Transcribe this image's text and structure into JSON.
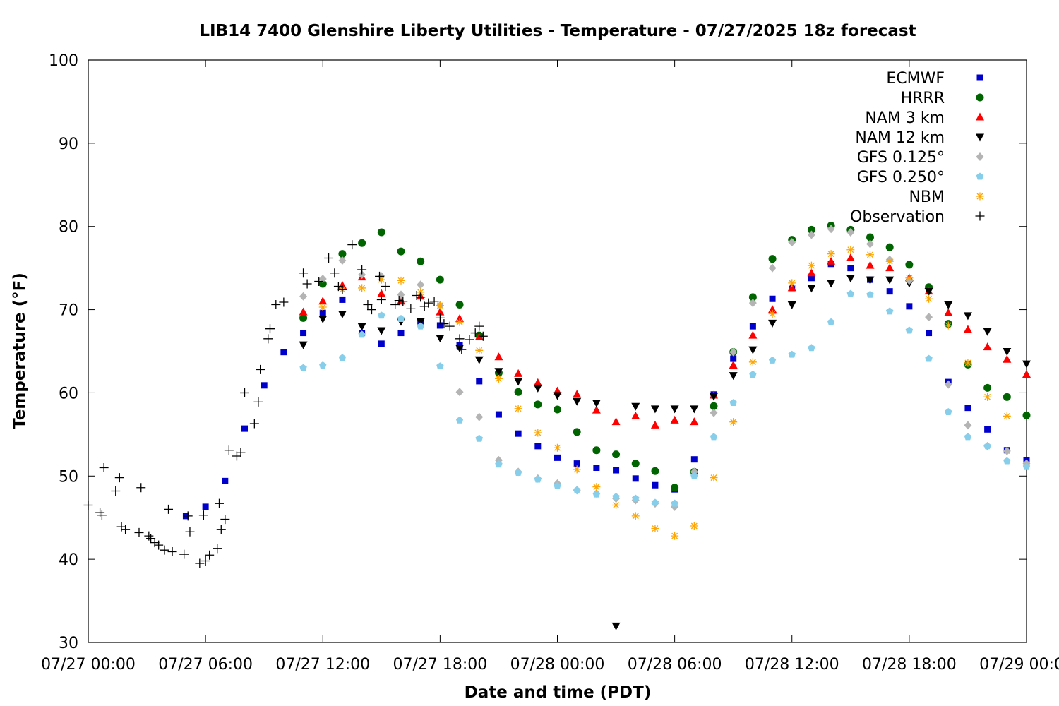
{
  "chart_data": {
    "type": "scatter",
    "title": "LIB14 7400 Glenshire Liberty Utilities - Temperature - 07/27/2025 18z forecast",
    "xlabel": "Date and time (PDT)",
    "ylabel": "Temperature (°F)",
    "xlim": [
      0,
      48
    ],
    "ylim": [
      30,
      100
    ],
    "x_ticks": [
      {
        "value": 0,
        "label": "07/27 00:00"
      },
      {
        "value": 6,
        "label": "07/27 06:00"
      },
      {
        "value": 12,
        "label": "07/27 12:00"
      },
      {
        "value": 18,
        "label": "07/27 18:00"
      },
      {
        "value": 24,
        "label": "07/28 00:00"
      },
      {
        "value": 30,
        "label": "07/28 06:00"
      },
      {
        "value": 36,
        "label": "07/28 12:00"
      },
      {
        "value": 42,
        "label": "07/28 18:00"
      },
      {
        "value": 48,
        "label": "07/29 00:00"
      }
    ],
    "y_ticks": [
      30,
      40,
      50,
      60,
      70,
      80,
      90,
      100
    ],
    "x_unit_note": "hours",
    "grid": false,
    "legend_position": "top-right",
    "series": [
      {
        "name": "ECMWF",
        "marker": "square",
        "color": "#0000cc",
        "x": [
          5,
          6,
          7,
          8,
          9,
          10,
          11,
          12,
          13,
          14,
          15,
          16,
          17,
          18,
          19,
          20,
          21,
          22,
          23,
          24,
          25,
          26,
          27,
          28,
          29,
          30,
          31,
          32,
          33,
          34,
          35,
          36,
          37,
          38,
          39,
          40,
          41,
          42,
          43,
          44,
          45,
          46,
          47,
          48
        ],
        "y": [
          45.2,
          46.3,
          49.4,
          55.7,
          60.9,
          64.9,
          67.2,
          69.6,
          71.2,
          67.2,
          65.9,
          67.2,
          68.6,
          68.1,
          65.7,
          61.4,
          57.4,
          55.1,
          53.6,
          52.2,
          51.5,
          51.0,
          50.7,
          49.7,
          48.9,
          48.4,
          52.0,
          59.8,
          64.1,
          68.0,
          71.3,
          72.6,
          73.8,
          75.5,
          75.0,
          73.6,
          72.2,
          70.4,
          67.2,
          61.3,
          58.2,
          55.6,
          53.1,
          51.9
        ]
      },
      {
        "name": "HRRR",
        "marker": "circle",
        "color": "#006400",
        "x": [
          11,
          12,
          13,
          14,
          15,
          16,
          17,
          18,
          19,
          20,
          21,
          22,
          23,
          24,
          25,
          26,
          27,
          28,
          29,
          30,
          31,
          32,
          33,
          34,
          35,
          36,
          37,
          38,
          39,
          40,
          41,
          42,
          43,
          44,
          45,
          46,
          47,
          48
        ],
        "y": [
          69.0,
          73.1,
          76.7,
          78.0,
          79.3,
          77.0,
          75.8,
          73.6,
          70.6,
          66.9,
          62.4,
          60.1,
          58.6,
          58.0,
          55.3,
          53.1,
          52.6,
          51.5,
          50.6,
          48.6,
          50.5,
          58.4,
          64.9,
          71.5,
          76.1,
          78.4,
          79.6,
          80.1,
          79.6,
          78.7,
          77.5,
          75.4,
          72.7,
          68.3,
          63.4,
          60.6,
          59.5,
          57.3
        ]
      },
      {
        "name": "NAM 3 km",
        "marker": "triangle-up",
        "color": "#ff0000",
        "x": [
          11,
          12,
          13,
          14,
          15,
          16,
          17,
          18,
          19,
          20,
          21,
          22,
          23,
          24,
          25,
          26,
          27,
          28,
          29,
          30,
          31,
          32,
          33,
          34,
          35,
          36,
          37,
          38,
          39,
          40,
          41,
          42,
          43,
          44,
          45,
          46,
          47,
          48
        ],
        "y": [
          69.7,
          71.0,
          72.9,
          73.9,
          71.9,
          71.0,
          71.6,
          69.7,
          68.9,
          66.7,
          64.3,
          62.3,
          61.2,
          60.2,
          59.8,
          57.9,
          56.5,
          57.2,
          56.1,
          56.7,
          56.5,
          59.7,
          63.3,
          66.9,
          70.0,
          72.6,
          74.4,
          75.8,
          76.2,
          75.3,
          75.0,
          73.8,
          72.2,
          69.6,
          67.6,
          65.5,
          64.0,
          62.2
        ]
      },
      {
        "name": "NAM 12 km",
        "marker": "triangle-down",
        "color": "#000000",
        "x": [
          11,
          12,
          13,
          14,
          15,
          16,
          17,
          18,
          19,
          20,
          21,
          22,
          23,
          24,
          25,
          26,
          27,
          28,
          29,
          30,
          31,
          32,
          33,
          34,
          35,
          36,
          37,
          38,
          39,
          40,
          41,
          42,
          43,
          44,
          45,
          46,
          47,
          48
        ],
        "y": [
          65.8,
          68.9,
          69.5,
          68.0,
          67.5,
          68.6,
          68.6,
          66.6,
          65.4,
          64.0,
          62.6,
          61.4,
          60.6,
          59.7,
          59.0,
          58.8,
          32.0,
          58.4,
          58.1,
          58.1,
          58.1,
          59.6,
          62.1,
          65.2,
          68.4,
          70.6,
          72.6,
          73.2,
          73.8,
          73.6,
          73.6,
          73.2,
          72.2,
          70.6,
          69.3,
          67.4,
          65.0,
          63.5
        ]
      },
      {
        "name": "GFS 0.125°",
        "marker": "diamond",
        "color": "#b4b4b4",
        "x": [
          11,
          12,
          13,
          14,
          15,
          16,
          17,
          18,
          19,
          20,
          21,
          22,
          23,
          24,
          25,
          26,
          27,
          28,
          29,
          30,
          31,
          32,
          33,
          34,
          35,
          36,
          37,
          38,
          39,
          40,
          41,
          42,
          43,
          44,
          45,
          46,
          47,
          48
        ],
        "y": [
          71.6,
          73.7,
          75.9,
          74.2,
          74.0,
          71.8,
          73.0,
          70.5,
          60.1,
          57.1,
          51.9,
          50.5,
          49.7,
          49.1,
          48.3,
          47.9,
          47.3,
          47.1,
          46.7,
          46.3,
          50.5,
          57.6,
          64.9,
          70.8,
          75.0,
          78.1,
          79.0,
          79.7,
          79.3,
          77.9,
          76.0,
          73.5,
          69.1,
          61.0,
          56.1,
          53.6,
          53.0,
          51.5
        ]
      },
      {
        "name": "GFS 0.250°",
        "marker": "pentagon",
        "color": "#87ceeb",
        "x": [
          11,
          12,
          13,
          14,
          15,
          16,
          17,
          18,
          19,
          20,
          21,
          22,
          23,
          24,
          25,
          26,
          27,
          28,
          29,
          30,
          31,
          32,
          33,
          34,
          35,
          36,
          37,
          38,
          39,
          40,
          41,
          42,
          43,
          44,
          45,
          46,
          47,
          48
        ],
        "y": [
          63.0,
          63.3,
          64.2,
          67.0,
          69.3,
          68.9,
          68.0,
          63.2,
          56.7,
          54.5,
          51.4,
          50.4,
          49.6,
          48.8,
          48.3,
          47.8,
          47.5,
          47.3,
          46.8,
          46.7,
          50.0,
          54.7,
          58.8,
          62.2,
          63.9,
          64.6,
          65.4,
          68.5,
          71.9,
          71.8,
          69.8,
          67.5,
          64.1,
          57.7,
          54.7,
          53.6,
          51.8,
          51.1
        ]
      },
      {
        "name": "NBM",
        "marker": "asterisk",
        "color": "#ffa500",
        "x": [
          12,
          13,
          14,
          15,
          16,
          17,
          18,
          19,
          20,
          21,
          22,
          23,
          24,
          25,
          26,
          27,
          28,
          29,
          30,
          31,
          32,
          33,
          34,
          35,
          36,
          37,
          38,
          39,
          40,
          41,
          42,
          43,
          44,
          45,
          46,
          47
        ],
        "y": [
          70.3,
          72.4,
          72.6,
          73.6,
          73.5,
          72.1,
          70.5,
          68.5,
          65.1,
          61.7,
          58.1,
          55.2,
          53.4,
          50.8,
          48.7,
          46.5,
          45.2,
          43.7,
          42.8,
          44.0,
          49.8,
          56.5,
          63.7,
          69.5,
          73.2,
          75.3,
          76.7,
          77.2,
          76.6,
          75.8,
          73.8,
          71.3,
          68.1,
          63.6,
          59.5,
          57.2
        ]
      },
      {
        "name": "Observation",
        "marker": "plus",
        "color": "#000000",
        "x": [
          0,
          0.6,
          0.7,
          0.8,
          1.4,
          1.6,
          1.7,
          1.9,
          2.6,
          2.7,
          3.1,
          3.2,
          3.4,
          3.6,
          3.9,
          4.1,
          4.3,
          4.9,
          5.1,
          5.2,
          5.7,
          5.9,
          6.0,
          6.2,
          6.6,
          6.7,
          6.8,
          7.0,
          7.2,
          7.6,
          7.8,
          8.0,
          8.5,
          8.7,
          8.8,
          9.2,
          9.3,
          9.6,
          10.0,
          11.0,
          11.2,
          11.8,
          12.3,
          12.6,
          12.8,
          13.0,
          13.5,
          14.0,
          14.3,
          14.5,
          14.9,
          15.0,
          15.2,
          15.7,
          15.9,
          16.1,
          16.5,
          16.8,
          17.0,
          17.2,
          17.4,
          17.7,
          18.0,
          18.2,
          18.5,
          19.0,
          19.1,
          19.5,
          19.8,
          20.0,
          20.2
        ],
        "y": [
          46.5,
          45.6,
          45.3,
          51.0,
          48.2,
          49.8,
          43.9,
          43.6,
          43.2,
          48.6,
          42.8,
          42.5,
          42.0,
          41.7,
          41.1,
          46.0,
          40.9,
          40.6,
          45.2,
          43.3,
          39.5,
          45.3,
          39.8,
          40.5,
          41.3,
          46.7,
          43.6,
          44.8,
          53.1,
          52.4,
          52.8,
          60.0,
          56.3,
          58.9,
          62.8,
          66.5,
          67.7,
          70.6,
          70.9,
          74.4,
          73.1,
          73.4,
          76.2,
          74.4,
          72.8,
          72.4,
          77.8,
          74.8,
          70.6,
          70.0,
          74.0,
          71.2,
          72.8,
          70.6,
          71.1,
          71.0,
          70.1,
          71.7,
          71.5,
          70.4,
          70.8,
          71.0,
          69.0,
          68.3,
          68.0,
          66.5,
          65.2,
          66.4,
          67.2,
          68.0,
          66.8
        ]
      }
    ]
  }
}
